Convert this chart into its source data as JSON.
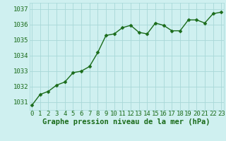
{
  "x": [
    0,
    1,
    2,
    3,
    4,
    5,
    6,
    7,
    8,
    9,
    10,
    11,
    12,
    13,
    14,
    15,
    16,
    17,
    18,
    19,
    20,
    21,
    22,
    23
  ],
  "y": [
    1030.8,
    1031.5,
    1031.7,
    1032.1,
    1032.3,
    1032.9,
    1033.0,
    1033.3,
    1034.2,
    1035.3,
    1035.4,
    1035.8,
    1035.95,
    1035.5,
    1035.4,
    1036.1,
    1035.95,
    1035.6,
    1035.6,
    1036.3,
    1036.3,
    1036.1,
    1036.7,
    1036.8
  ],
  "ylim": [
    1030.5,
    1037.4
  ],
  "yticks": [
    1031,
    1032,
    1033,
    1034,
    1035,
    1036,
    1037
  ],
  "xticks": [
    0,
    1,
    2,
    3,
    4,
    5,
    6,
    7,
    8,
    9,
    10,
    11,
    12,
    13,
    14,
    15,
    16,
    17,
    18,
    19,
    20,
    21,
    22,
    23
  ],
  "line_color": "#1a6b1a",
  "marker": "D",
  "marker_size": 2.5,
  "bg_color": "#cff0f0",
  "grid_color": "#a8d8d8",
  "xlabel": "Graphe pression niveau de la mer (hPa)",
  "xlabel_color": "#1a6b1a",
  "xlabel_fontsize": 7.5,
  "tick_fontsize": 6.5,
  "tick_color": "#1a6b1a",
  "line_width": 1.0
}
